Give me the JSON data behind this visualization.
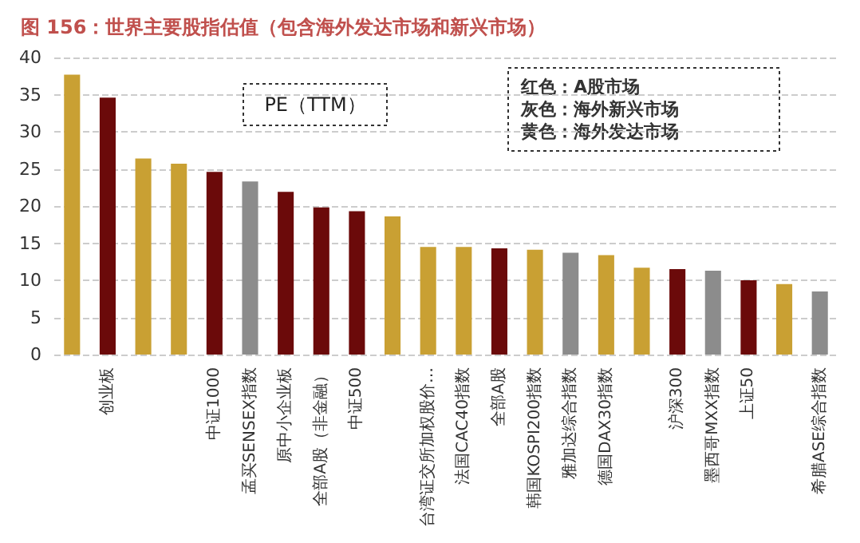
{
  "chart_data": {
    "type": "bar",
    "title": "图 156：世界主要股指估值（包含海外发达市场和新兴市场）",
    "categories": [
      null,
      "创业板",
      null,
      null,
      "中证1000",
      "孟买SENSEX指数",
      "原中小企业板",
      "全部A股（非金融）",
      "中证500",
      null,
      "台湾证交所加权股价…",
      "法国CAC40指数",
      "全部A股",
      "韩国KOSPI200指数",
      "雅加达综合指数",
      "德国DAX30指数",
      null,
      "沪深300",
      "墨西哥MXX指数",
      "上证50",
      null,
      "希腊ASE综合指数"
    ],
    "values": [
      37.7,
      34.6,
      26.4,
      25.7,
      24.6,
      23.3,
      21.9,
      19.8,
      19.3,
      18.6,
      14.5,
      14.5,
      14.3,
      14.1,
      13.7,
      13.4,
      11.7,
      11.5,
      11.3,
      10.0,
      9.5,
      8.5
    ],
    "colors": [
      "#c9a033",
      "#6b0a0a",
      "#c9a033",
      "#c9a033",
      "#6b0a0a",
      "#8c8c8c",
      "#6b0a0a",
      "#6b0a0a",
      "#6b0a0a",
      "#c9a033",
      "#c9a033",
      "#c9a033",
      "#6b0a0a",
      "#c9a033",
      "#8c8c8c",
      "#c9a033",
      "#c9a033",
      "#6b0a0a",
      "#8c8c8c",
      "#6b0a0a",
      "#c9a033",
      "#8c8c8c"
    ],
    "ylim": [
      0,
      40
    ],
    "yticks": [
      0,
      5,
      10,
      15,
      20,
      25,
      30,
      35,
      40
    ],
    "grid": "y",
    "annotations": [
      "PE（TTM）",
      "红色：A股市场",
      "灰色：海外新兴市场",
      "黄色：海外发达市场"
    ]
  }
}
